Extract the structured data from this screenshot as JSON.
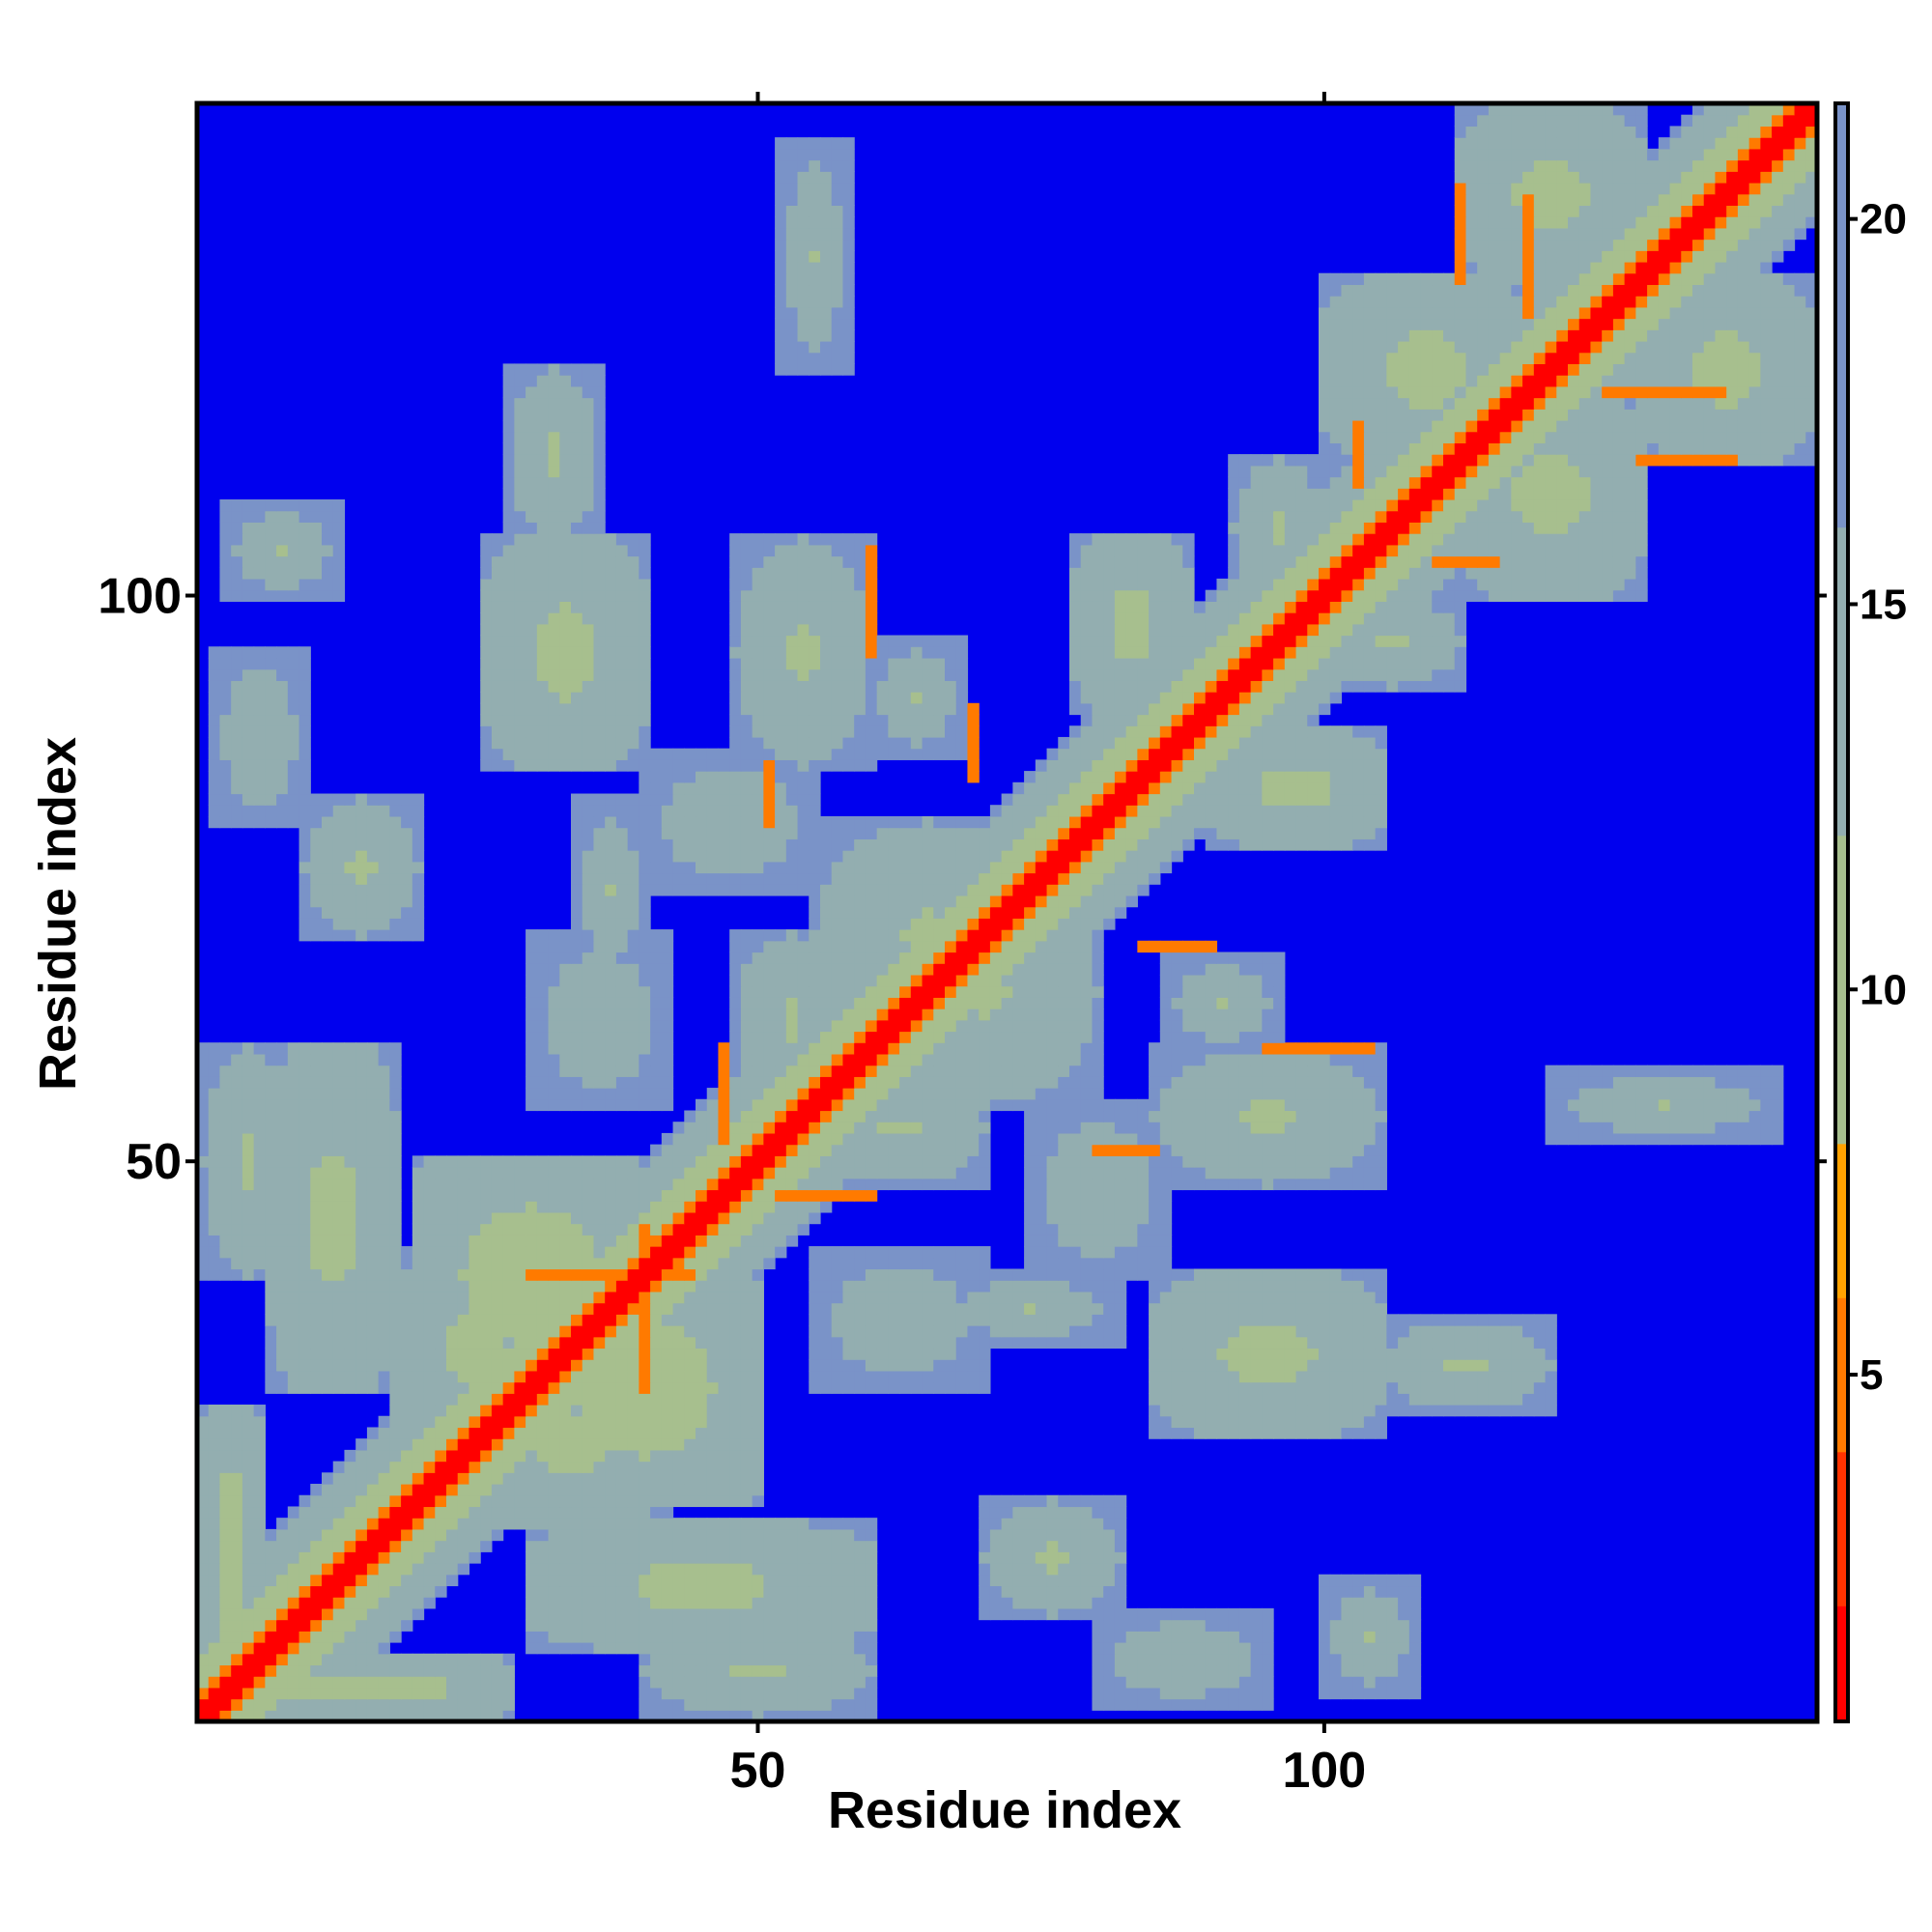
{
  "chart_data": {
    "type": "heatmap",
    "title": "",
    "xlabel": "Residue index",
    "ylabel": "Residue index",
    "xlim": [
      1,
      143
    ],
    "ylim": [
      1,
      143
    ],
    "x_ticks": [
      50,
      100
    ],
    "y_ticks": [
      50,
      100
    ],
    "colorbar": {
      "range": [
        0.5,
        21.5
      ],
      "ticks": [
        5,
        10,
        15,
        20
      ],
      "palette": [
        {
          "to": 2.0,
          "color": "#ff0000"
        },
        {
          "to": 4.0,
          "color": "#ff3300"
        },
        {
          "to": 6.0,
          "color": "#ff7a00"
        },
        {
          "to": 8.0,
          "color": "#ffa200"
        },
        {
          "to": 12.0,
          "color": "#a7bf8e"
        },
        {
          "to": 16.0,
          "color": "#93aeb0"
        },
        {
          "to": 21.5,
          "color": "#7a93c8"
        }
      ],
      "above_max_color": "#0000ee"
    },
    "matrix": {
      "n": 143,
      "symmetric": true,
      "description_of_values": "inter-residue distance",
      "diagonal_band_value": 1.5,
      "contact_blocks": [
        {
          "i": [
            1,
            6
          ],
          "j": [
            1,
            28
          ],
          "value": 9
        },
        {
          "i": [
            1,
            9
          ],
          "j": [
            40,
            60
          ],
          "value": 11
        },
        {
          "i": [
            2,
            10
          ],
          "j": [
            80,
            95
          ],
          "value": 12
        },
        {
          "i": [
            3,
            13
          ],
          "j": [
            100,
            108
          ],
          "value": 12
        },
        {
          "i": [
            7,
            18
          ],
          "j": [
            30,
            60
          ],
          "value": 10
        },
        {
          "i": [
            10,
            20
          ],
          "j": [
            70,
            82
          ],
          "value": 11
        },
        {
          "i": [
            18,
            32
          ],
          "j": [
            25,
            42
          ],
          "value": 10
        },
        {
          "i": [
            20,
            40
          ],
          "j": [
            30,
            50
          ],
          "value": 9
        },
        {
          "i": [
            26,
            40
          ],
          "j": [
            85,
            105
          ],
          "value": 10
        },
        {
          "i": [
            28,
            36
          ],
          "j": [
            105,
            120
          ],
          "value": 11
        },
        {
          "i": [
            30,
            42
          ],
          "j": [
            55,
            70
          ],
          "value": 12
        },
        {
          "i": [
            34,
            40
          ],
          "j": [
            66,
            82
          ],
          "value": 12
        },
        {
          "i": [
            48,
            58
          ],
          "j": [
            55,
            70
          ],
          "value": 11
        },
        {
          "i": [
            48,
            60
          ],
          "j": [
            85,
            105
          ],
          "value": 11
        },
        {
          "i": [
            52,
            58
          ],
          "j": [
            120,
            140
          ],
          "value": 12
        },
        {
          "i": [
            55,
            75
          ],
          "j": [
            60,
            80
          ],
          "value": 11
        },
        {
          "i": [
            74,
            86
          ],
          "j": [
            40,
            55
          ],
          "value": 12
        },
        {
          "i": [
            78,
            88
          ],
          "j": [
            90,
            105
          ],
          "value": 10
        },
        {
          "i": [
            86,
            96
          ],
          "j": [
            60,
            68
          ],
          "value": 12
        },
        {
          "i": [
            92,
            100
          ],
          "j": [
            100,
            112
          ],
          "value": 11
        },
        {
          "i": [
            100,
            118
          ],
          "j": [
            112,
            128
          ],
          "value": 10
        },
        {
          "i": [
            112,
            128
          ],
          "j": [
            128,
            143
          ],
          "value": 10
        }
      ],
      "close_contact_lines": [
        {
          "i": 40,
          "j0": 30,
          "j1": 44,
          "value": 5
        },
        {
          "i": 47,
          "j0": 52,
          "j1": 60,
          "value": 6
        },
        {
          "i": 51,
          "j0": 80,
          "j1": 85,
          "value": 6
        },
        {
          "i": 60,
          "j0": 95,
          "j1": 104,
          "value": 5
        },
        {
          "i": 69,
          "j0": 84,
          "j1": 90,
          "value": 6
        },
        {
          "i": 103,
          "j0": 110,
          "j1": 115,
          "value": 5
        },
        {
          "i": 112,
          "j0": 128,
          "j1": 136,
          "value": 6
        },
        {
          "i": 118,
          "j0": 125,
          "j1": 135,
          "value": 5
        }
      ]
    }
  }
}
